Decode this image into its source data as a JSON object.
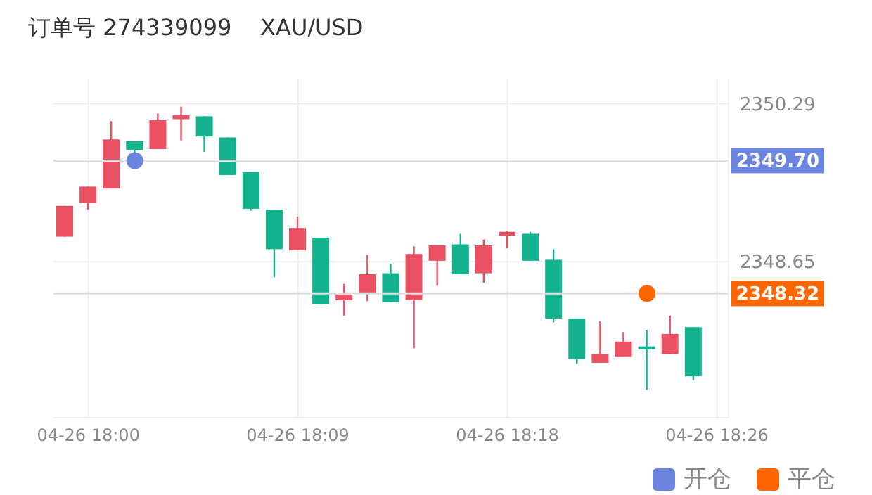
{
  "chart_data": {
    "type": "candlestick",
    "title": "订单号 274339099    XAU/USD",
    "categories": [
      null,
      "04-26 18:00",
      null,
      null,
      null,
      null,
      null,
      null,
      null,
      null,
      "04-26 18:09",
      null,
      null,
      null,
      null,
      null,
      null,
      null,
      null,
      "04-26 18:18",
      null,
      null,
      null,
      null,
      null,
      null,
      null,
      null,
      "04-26 18:26"
    ],
    "ohlc": [
      [
        2348.91,
        2349.23,
        2348.91,
        2349.23
      ],
      [
        2349.26,
        2349.43,
        2349.19,
        2349.43
      ],
      [
        2349.41,
        2350.11,
        2349.41,
        2349.92
      ],
      [
        2349.9,
        2349.9,
        2349.77,
        2349.81
      ],
      [
        2349.82,
        2350.19,
        2349.82,
        2350.12
      ],
      [
        2350.13,
        2350.26,
        2349.91,
        2350.17
      ],
      [
        2350.16,
        2350.16,
        2349.79,
        2349.95
      ],
      [
        2349.94,
        2349.94,
        2349.55,
        2349.55
      ],
      [
        2349.58,
        2349.58,
        2349.18,
        2349.2
      ],
      [
        2349.19,
        2349.19,
        2348.49,
        2348.78
      ],
      [
        2348.77,
        2349.12,
        2348.77,
        2349.0
      ],
      [
        2348.9,
        2348.9,
        2348.21,
        2348.21
      ],
      [
        2348.25,
        2348.42,
        2348.09,
        2348.31
      ],
      [
        2348.33,
        2348.72,
        2348.24,
        2348.52
      ],
      [
        2348.53,
        2348.63,
        2348.23,
        2348.23
      ],
      [
        2348.25,
        2348.81,
        2347.75,
        2348.73
      ],
      [
        2348.66,
        2348.82,
        2348.4,
        2348.82
      ],
      [
        2348.83,
        2348.94,
        2348.52,
        2348.52
      ],
      [
        2348.53,
        2348.88,
        2348.43,
        2348.82
      ],
      [
        2348.92,
        2348.97,
        2348.79,
        2348.96
      ],
      [
        2348.94,
        2348.96,
        2348.66,
        2348.66
      ],
      [
        2348.67,
        2348.78,
        2348.02,
        2348.06
      ],
      [
        2348.06,
        2348.06,
        2347.59,
        2347.64
      ],
      [
        2347.6,
        2348.03,
        2347.6,
        2347.69
      ],
      [
        2347.66,
        2347.92,
        2347.66,
        2347.82
      ],
      [
        2347.77,
        2347.94,
        2347.32,
        2347.74
      ],
      [
        2347.69,
        2348.09,
        2347.69,
        2347.9
      ],
      [
        2347.97,
        2347.97,
        2347.42,
        2347.46
      ],
      null
    ],
    "colors": [
      "#ea5163",
      "#ea5163",
      "#ea5163",
      "#12b28f",
      "#ea5163",
      "#ea5163",
      "#12b28f",
      "#12b28f",
      "#12b28f",
      "#12b28f",
      "#ea5163",
      "#12b28f",
      "#ea5163",
      "#ea5163",
      "#12b28f",
      "#ea5163",
      "#ea5163",
      "#12b28f",
      "#ea5163",
      "#ea5163",
      "#12b28f",
      "#12b28f",
      "#12b28f",
      "#ea5163",
      "#ea5163",
      "#12b28f",
      "#ea5163",
      "#12b28f",
      null
    ],
    "series": [
      {
        "name": "开仓",
        "type": "scatter",
        "color": "#6b85de",
        "values": [
          null,
          null,
          null,
          2349.7,
          null,
          null,
          null,
          null,
          null,
          null,
          null,
          null,
          null,
          null,
          null,
          null,
          null,
          null,
          null,
          null,
          null,
          null,
          null,
          null,
          null,
          null,
          null,
          null,
          null
        ]
      },
      {
        "name": "平仓",
        "type": "scatter",
        "color": "#ff6600",
        "values": [
          null,
          null,
          null,
          null,
          null,
          null,
          null,
          null,
          null,
          null,
          null,
          null,
          null,
          null,
          null,
          null,
          null,
          null,
          null,
          null,
          null,
          null,
          null,
          null,
          null,
          2348.32,
          null,
          null,
          null
        ]
      }
    ],
    "ref_lines": [
      {
        "axis": "y",
        "value": 2349.7,
        "label": "2349.70"
      },
      {
        "axis": "y",
        "value": 2348.32,
        "label": "2348.32"
      }
    ],
    "ylim": [
      2347.03,
      2350.55
    ],
    "yticks": [
      2350.29,
      2348.65
    ],
    "grid": true,
    "legend": "bottom right"
  }
}
